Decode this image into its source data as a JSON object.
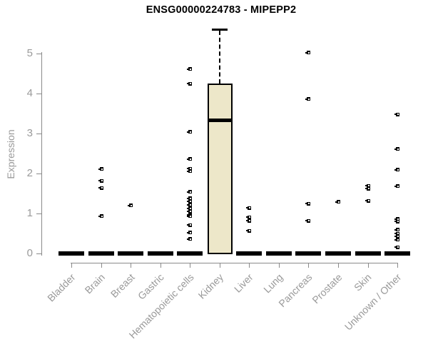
{
  "title": "ENSG00000224783 - MIPEPP2",
  "y_axis": {
    "label": "Expression",
    "ticks": [
      "0",
      "1",
      "2",
      "3",
      "4",
      "5"
    ]
  },
  "chart_data": {
    "type": "boxplot",
    "title": "ENSG00000224783 - MIPEPP2",
    "xlabel": "",
    "ylabel": "Expression",
    "ylim": [
      0,
      5.8
    ],
    "grid": false,
    "legend": false,
    "box_fill_color": "#ede7c9",
    "axis_color": "#8a8a8a",
    "label_color": "#9a9a9a",
    "categories": [
      "Bladder",
      "Brain",
      "Breast",
      "Gastric",
      "Hematopoietic cells",
      "Kidney",
      "Liver",
      "Lung",
      "Pancreas",
      "Prostate",
      "Skin",
      "Unknown / Other"
    ],
    "boxes": [
      {
        "category": "Bladder",
        "q1": 0,
        "median": 0,
        "q3": 0,
        "whisker_high": 0,
        "outliers": []
      },
      {
        "category": "Brain",
        "q1": 0,
        "median": 0,
        "q3": 0,
        "whisker_high": 0,
        "outliers": [
          2.11,
          1.82,
          1.64,
          0.93
        ]
      },
      {
        "category": "Breast",
        "q1": 0,
        "median": 0,
        "q3": 0,
        "whisker_high": 0,
        "outliers": [
          1.2
        ]
      },
      {
        "category": "Gastric",
        "q1": 0,
        "median": 0,
        "q3": 0,
        "whisker_high": 0,
        "outliers": []
      },
      {
        "category": "Hematopoietic cells",
        "q1": 0,
        "median": 0,
        "q3": 0,
        "whisker_high": 0,
        "outliers": [
          4.61,
          4.25,
          3.04,
          2.36,
          2.12,
          2.06,
          1.54,
          1.38,
          1.3,
          1.21,
          1.13,
          1.05,
          0.96,
          0.93,
          0.71,
          0.52,
          0.36
        ]
      },
      {
        "category": "Kidney",
        "q1": 0.02,
        "median": 3.34,
        "q3": 4.25,
        "whisker_high": 5.61,
        "outliers": []
      },
      {
        "category": "Liver",
        "q1": 0,
        "median": 0,
        "q3": 0,
        "whisker_high": 0,
        "outliers": [
          1.14,
          0.91,
          0.82,
          0.57
        ]
      },
      {
        "category": "Lung",
        "q1": 0,
        "median": 0,
        "q3": 0,
        "whisker_high": 0,
        "outliers": []
      },
      {
        "category": "Pancreas",
        "q1": 0,
        "median": 0,
        "q3": 0,
        "whisker_high": 0,
        "outliers": [
          5.02,
          3.86,
          1.25,
          0.82
        ]
      },
      {
        "category": "Prostate",
        "q1": 0,
        "median": 0,
        "q3": 0,
        "whisker_high": 0,
        "outliers": [
          1.29
        ]
      },
      {
        "category": "Skin",
        "q1": 0,
        "median": 0,
        "q3": 0,
        "whisker_high": 0,
        "outliers": [
          1.69,
          1.62,
          1.32
        ]
      },
      {
        "category": "Unknown / Other",
        "q1": 0,
        "median": 0,
        "q3": 0,
        "whisker_high": 0,
        "outliers": [
          3.48,
          2.61,
          2.09,
          1.68,
          0.86,
          0.8,
          0.59,
          0.5,
          0.43,
          0.34,
          0.16
        ]
      }
    ]
  }
}
